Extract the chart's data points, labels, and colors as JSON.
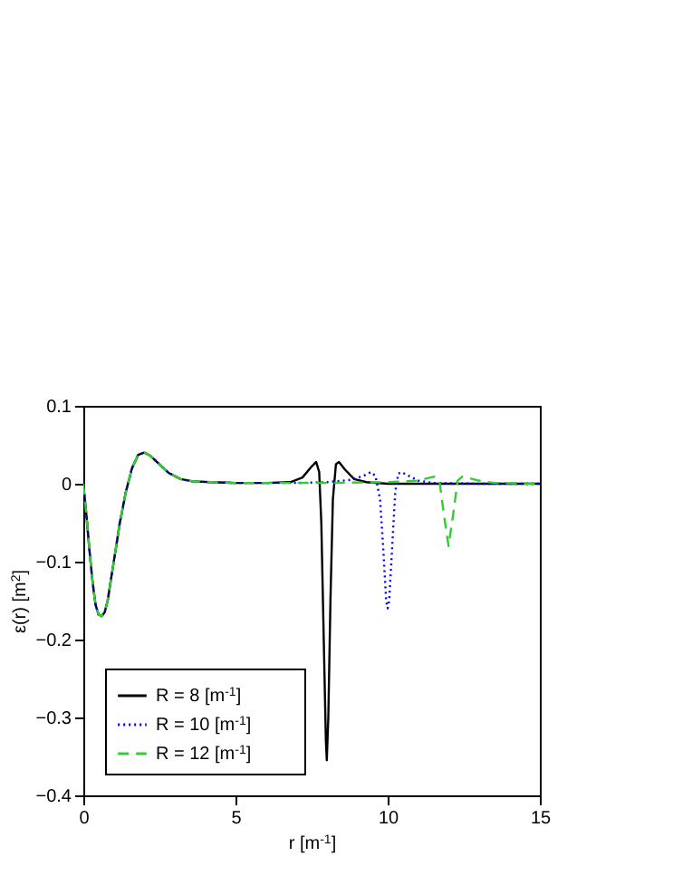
{
  "chart_data": {
    "type": "line",
    "xlabel": "r [m$^{-1}$]",
    "ylabel": "ε(r) [m$^{2}$]",
    "xlim": [
      0,
      15
    ],
    "xticks": [
      0,
      5,
      10,
      15
    ],
    "ylim": [
      -0.4,
      0.1
    ],
    "yticks": [
      -0.4,
      -0.3,
      -0.2,
      -0.1,
      0,
      0.1
    ],
    "legend": "bottom left",
    "marker": "none",
    "series": [
      {
        "name": "R = 8 [m$^{-1}$]",
        "color": "#000000",
        "line_style": "solid",
        "x": [
          0,
          0.1,
          0.2,
          0.3,
          0.4,
          0.5,
          0.6,
          0.7,
          0.8,
          0.9,
          1.0,
          1.2,
          1.4,
          1.6,
          1.8,
          2.0,
          2.2,
          2.5,
          2.8,
          3.2,
          3.6,
          4.2,
          5,
          6,
          6.8,
          7.2,
          7.5,
          7.65,
          7.75,
          7.82,
          7.9,
          7.97,
          8.0,
          8.05,
          8.12,
          8.2,
          8.3,
          8.4,
          8.6,
          8.9,
          9.3,
          10,
          12,
          15
        ],
        "values": [
          0,
          -0.04,
          -0.085,
          -0.125,
          -0.155,
          -0.168,
          -0.17,
          -0.165,
          -0.15,
          -0.125,
          -0.1,
          -0.05,
          -0.01,
          0.02,
          0.037,
          0.04,
          0.036,
          0.025,
          0.014,
          0.006,
          0.003,
          0.002,
          0.001,
          0.001,
          0.002,
          0.008,
          0.022,
          0.028,
          0.015,
          -0.05,
          -0.2,
          -0.33,
          -0.355,
          -0.3,
          -0.15,
          -0.02,
          0.025,
          0.028,
          0.018,
          0.006,
          0.002,
          0,
          0,
          0
        ]
      },
      {
        "name": "R = 10 [m$^{-1}$]",
        "color": "#0000ff",
        "line_style": "dotted",
        "x": [
          0,
          0.1,
          0.2,
          0.3,
          0.4,
          0.5,
          0.6,
          0.7,
          0.8,
          0.9,
          1.0,
          1.2,
          1.4,
          1.6,
          1.8,
          2.0,
          2.2,
          2.5,
          2.8,
          3.2,
          3.6,
          4.2,
          5,
          6,
          7,
          8,
          8.8,
          9.2,
          9.45,
          9.6,
          9.75,
          9.85,
          9.95,
          10.0,
          10.05,
          10.15,
          10.25,
          10.35,
          10.45,
          10.7,
          11,
          11.5,
          13,
          15
        ],
        "values": [
          0,
          -0.04,
          -0.085,
          -0.125,
          -0.155,
          -0.168,
          -0.17,
          -0.165,
          -0.15,
          -0.125,
          -0.1,
          -0.05,
          -0.01,
          0.02,
          0.037,
          0.04,
          0.036,
          0.025,
          0.014,
          0.006,
          0.003,
          0.002,
          0.001,
          0.001,
          0.001,
          0.002,
          0.005,
          0.01,
          0.015,
          0.01,
          -0.02,
          -0.08,
          -0.15,
          -0.16,
          -0.15,
          -0.08,
          -0.01,
          0.013,
          0.015,
          0.01,
          0.004,
          0.001,
          0,
          0
        ]
      },
      {
        "name": "R = 12 [m$^{-1}$]",
        "color": "#33cc33",
        "line_style": "dashed",
        "x": [
          0,
          0.1,
          0.2,
          0.3,
          0.4,
          0.5,
          0.6,
          0.7,
          0.8,
          0.9,
          1.0,
          1.2,
          1.4,
          1.6,
          1.8,
          2.0,
          2.2,
          2.5,
          2.8,
          3.2,
          3.6,
          4.2,
          5,
          6,
          8,
          10,
          11,
          11.4,
          11.55,
          11.7,
          11.85,
          12.0,
          12.15,
          12.3,
          12.45,
          12.6,
          13,
          13.5,
          15
        ],
        "values": [
          0,
          -0.04,
          -0.085,
          -0.125,
          -0.155,
          -0.168,
          -0.17,
          -0.165,
          -0.15,
          -0.125,
          -0.1,
          -0.05,
          -0.01,
          0.02,
          0.037,
          0.04,
          0.036,
          0.025,
          0.014,
          0.006,
          0.003,
          0.002,
          0.001,
          0.001,
          0.001,
          0.002,
          0.004,
          0.008,
          0.009,
          0.004,
          -0.04,
          -0.08,
          -0.04,
          0.004,
          0.009,
          0.008,
          0.004,
          0.001,
          0
        ]
      }
    ]
  }
}
